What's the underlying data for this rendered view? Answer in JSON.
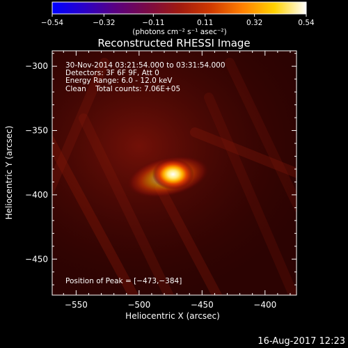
{
  "chart_data": {
    "type": "heatmap",
    "title": "Reconstructed RHESSI Image",
    "xlabel": "Heliocentric X (arcsec)",
    "ylabel": "Heliocentric Y (arcsec)",
    "xlim": [
      -569,
      -375
    ],
    "ylim": [
      -478,
      -288
    ],
    "xticks": [
      -550,
      -500,
      -450,
      -400
    ],
    "yticks": [
      -300,
      -350,
      -400,
      -450
    ],
    "xtick_labels": [
      "−550",
      "−500",
      "−450",
      "−400"
    ],
    "ytick_labels": [
      "−300",
      "−350",
      "−400",
      "−450"
    ],
    "colorbar": {
      "min": -0.54,
      "max": 0.54,
      "ticks": [
        -0.54,
        -0.32,
        -0.11,
        0.11,
        0.32,
        0.54
      ],
      "tick_labels": [
        "−0.54",
        "−0.32",
        "−0.11",
        "0.11",
        "0.32",
        "0.54"
      ],
      "unit_label": "(photons cm⁻² s⁻¹ asec⁻²)",
      "colormap": [
        "#0000ff",
        "#2a00c8",
        "#5a0080",
        "#7a0a45",
        "#a01a10",
        "#d03a00",
        "#ff8000",
        "#ffd200",
        "#ffffff"
      ]
    },
    "peak": {
      "x": -473,
      "y": -384,
      "value": 0.54
    },
    "annotations": [
      "30-Nov-2014 03:21:54.000 to 03:31:54.000",
      "Detectors: 3F 6F 9F, Att 0",
      "Energy Range: 6.0 - 12.0 keV",
      "Clean    Total counts: 7.06E+05"
    ],
    "peak_label": "Position of Peak = [−473,−384]",
    "footer_date": "16-Aug-2017 12:23"
  }
}
